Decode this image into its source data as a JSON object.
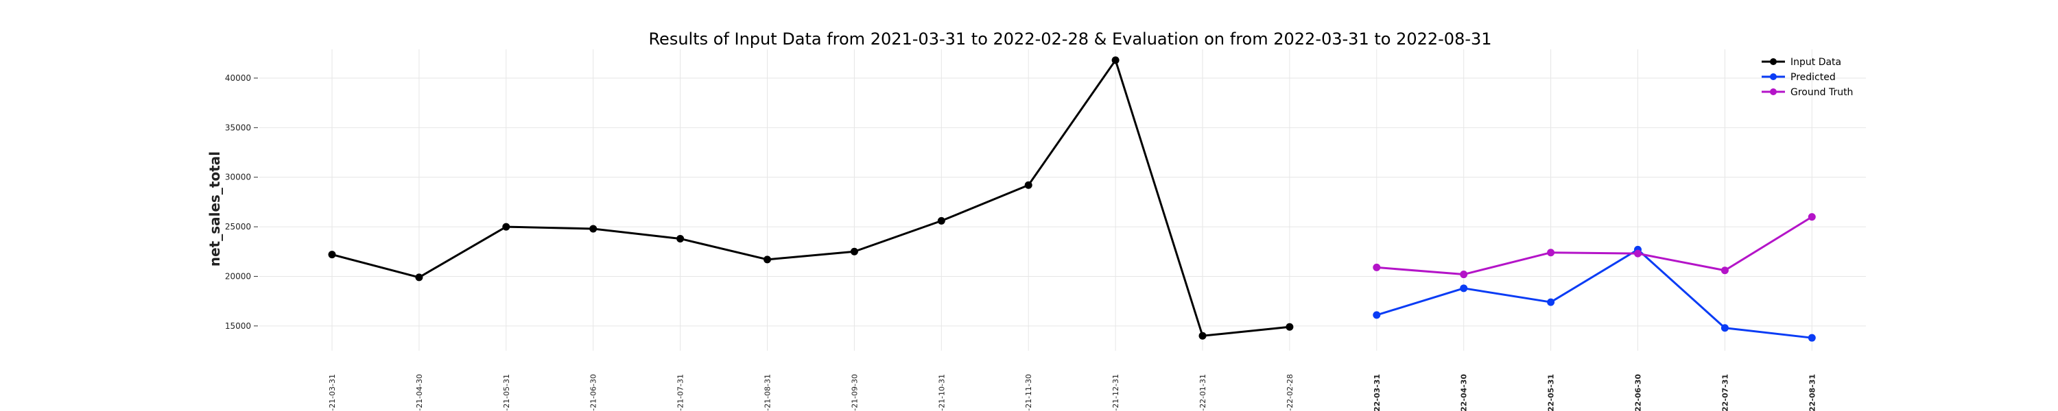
{
  "chart_data": {
    "type": "line",
    "title": "Results of Input Data from 2021-03-31 to 2022-02-28 & Evaluation on from 2022-03-31 to 2022-08-31",
    "xlabel": "",
    "ylabel": "net_sales_total",
    "x": [
      "2021-03-31",
      "2021-04-30",
      "2021-05-31",
      "2021-06-30",
      "2021-07-31",
      "2021-08-31",
      "2021-09-30",
      "2021-10-31",
      "2021-11-30",
      "2021-12-31",
      "2022-01-31",
      "2022-02-28",
      "2022-03-31",
      "2022-04-30",
      "2022-05-31",
      "2022-06-30",
      "2022-07-31",
      "2022-08-31"
    ],
    "x_tick_labels": [
      "-21-03-31",
      "-21-04-30",
      "-21-05-31",
      "-21-06-30",
      "-21-07-31",
      "-21-08-31",
      "-21-09-30",
      "-21-10-31",
      "-21-11-30",
      "-21-12-31",
      "-22-01-31",
      "-22-02-28",
      "-22-03-31",
      "-22-04-30",
      "-22-05-31",
      "-22-06-30",
      "-22-07-31",
      "-22-08-31"
    ],
    "y_ticks": [
      15000,
      20000,
      25000,
      30000,
      35000,
      40000
    ],
    "ylim": [
      12500,
      42900
    ],
    "grid": true,
    "legend_position": "top-right",
    "series": [
      {
        "name": "Input Data",
        "color": "#000000",
        "x": [
          "2021-03-31",
          "2021-04-30",
          "2021-05-31",
          "2021-06-30",
          "2021-07-31",
          "2021-08-31",
          "2021-09-30",
          "2021-10-31",
          "2021-11-30",
          "2021-12-31",
          "2022-01-31",
          "2022-02-28"
        ],
        "values": [
          22200,
          19900,
          25000,
          24800,
          23800,
          21700,
          22500,
          25600,
          29200,
          41800,
          14000,
          14900
        ]
      },
      {
        "name": "Predicted",
        "color": "#0a3cf5",
        "x": [
          "2022-03-31",
          "2022-04-30",
          "2022-05-31",
          "2022-06-30",
          "2022-07-31",
          "2022-08-31"
        ],
        "values": [
          16100,
          18800,
          17400,
          22700,
          14800,
          13800
        ]
      },
      {
        "name": "Ground Truth",
        "color": "#b414c8",
        "x": [
          "2022-03-31",
          "2022-04-30",
          "2022-05-31",
          "2022-06-30",
          "2022-07-31",
          "2022-08-31"
        ],
        "values": [
          20900,
          20200,
          22400,
          22300,
          20600,
          26000
        ]
      }
    ]
  }
}
